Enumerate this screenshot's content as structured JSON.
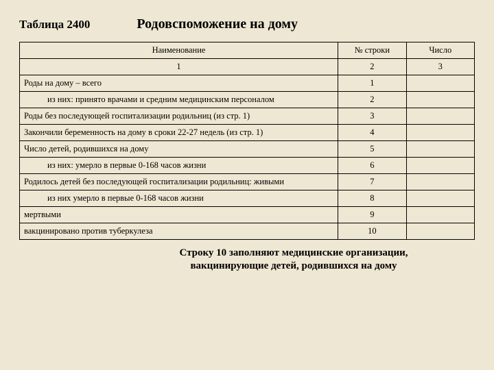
{
  "header": {
    "table_label": "Таблица 2400",
    "title": "Родовспоможение на дому"
  },
  "columns": {
    "name": "Наименование",
    "row_no": "№ строки",
    "count": "Число",
    "sub_name": "1",
    "sub_row_no": "2",
    "sub_count": "3"
  },
  "rows": [
    {
      "name": "Роды на дому – всего",
      "indent": 0,
      "num": "1"
    },
    {
      "name": "из них: принято врачами и средним медицинским персоналом",
      "indent": 1,
      "num": "2"
    },
    {
      "name": "Роды без последующей госпитализации родильниц (из стр. 1)",
      "indent": 0,
      "num": "3"
    },
    {
      "name": "Закончили беременность на дому в сроки 22-27 недель (из стр. 1)",
      "indent": 0,
      "num": "4"
    },
    {
      "name": "Число детей, родившихся на дому",
      "indent": 0,
      "num": "5"
    },
    {
      "name": "из них: умерло в первые 0-168 часов жизни",
      "indent": 1,
      "num": "6"
    },
    {
      "name": "Родилось детей без последующей госпитализации родильниц: живыми",
      "indent": 0,
      "num": "7"
    },
    {
      "name": "из них умерло в первые 0-168 часов жизни",
      "indent": 1,
      "num": "8"
    },
    {
      "name": "мертвыми",
      "indent": 0,
      "num": "9"
    },
    {
      "name": "вакцинировано против туберкулеза",
      "indent": 0,
      "num": "10"
    }
  ],
  "footnote": "Строку 10 заполняют медицинские организации, вакцинирующие детей, родившихся на дому",
  "styling": {
    "background_color": "#eee7d3",
    "border_color": "#000000",
    "font_family": "Times New Roman",
    "title_fontsize": 20,
    "label_fontsize": 17,
    "table_fontsize": 12.5,
    "footnote_fontsize": 15,
    "col_widths_pct": [
      70,
      15,
      15
    ]
  }
}
